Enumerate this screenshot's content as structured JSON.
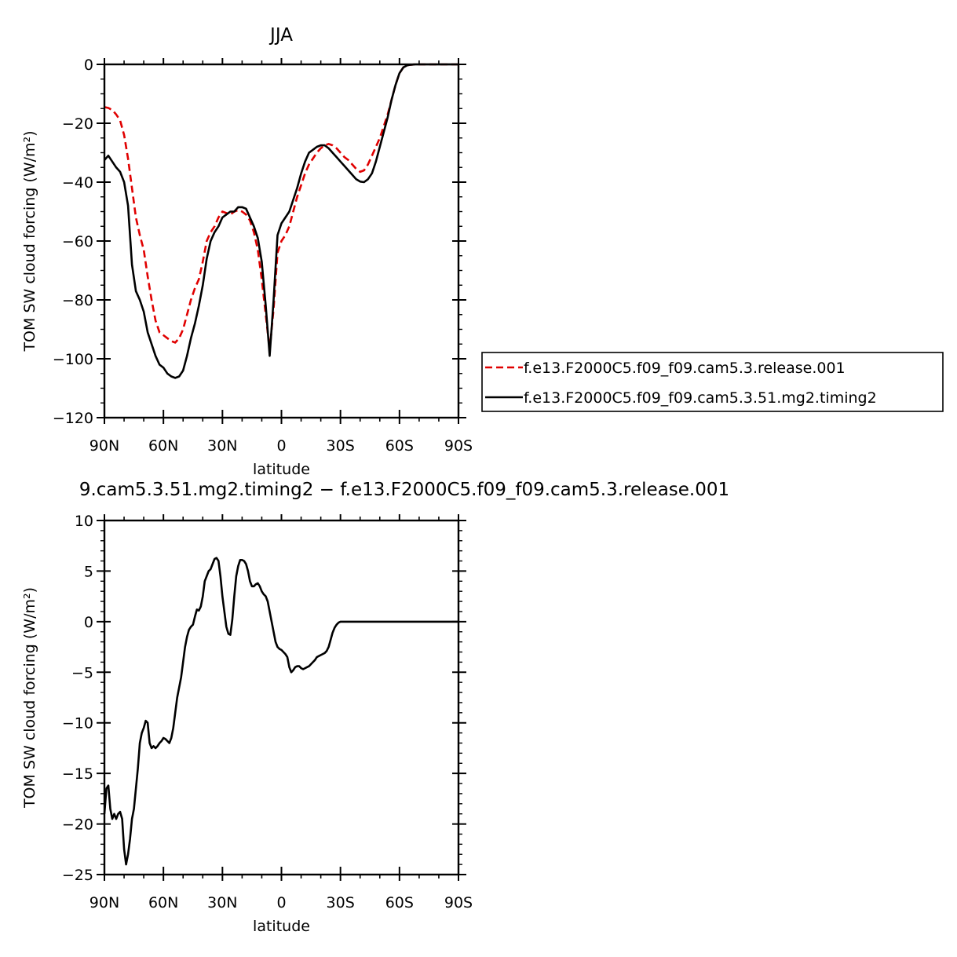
{
  "colors": {
    "axis": "#000000",
    "release": "#e00000",
    "timing2": "#000000",
    "background": "#ffffff"
  },
  "chart_data": [
    {
      "type": "line",
      "title": "JJA",
      "xlabel": "latitude",
      "ylabel": "TOM SW cloud forcing (W/m²)",
      "xlim": [
        90,
        -90
      ],
      "ylim": [
        -120,
        0
      ],
      "xticks": [
        90,
        60,
        30,
        0,
        -30,
        -60,
        -90
      ],
      "xtick_labels": [
        "90N",
        "60N",
        "30N",
        "0",
        "30S",
        "60S",
        "90S"
      ],
      "yticks": [
        0,
        -20,
        -40,
        -60,
        -80,
        -100,
        -120
      ],
      "ytick_labels": [
        "0",
        "−20",
        "−40",
        "−60",
        "−80",
        "−100",
        "−120"
      ],
      "grid": false,
      "legend_position": "right",
      "series": [
        {
          "name": "f.e13.F2000C5.f09_f09.cam5.3.release.001",
          "style": "dashed",
          "color": "#e00000",
          "x": [
            90,
            88,
            86,
            84,
            82,
            80,
            78,
            76,
            74,
            72,
            70,
            68,
            66,
            64,
            62,
            60,
            58,
            56,
            54,
            52,
            50,
            48,
            46,
            44,
            42,
            40,
            38,
            36,
            34,
            32,
            30,
            28,
            26,
            24,
            22,
            20,
            18,
            16,
            14,
            12,
            10,
            8,
            6,
            4,
            2,
            0,
            -2,
            -4,
            -6,
            -8,
            -10,
            -12,
            -14,
            -16,
            -18,
            -20,
            -22,
            -24,
            -26,
            -28,
            -30,
            -32,
            -34,
            -36,
            -38,
            -40,
            -42,
            -44,
            -46,
            -48,
            -50,
            -52,
            -54,
            -56,
            -58,
            -60,
            -62,
            -64,
            -66,
            -68,
            -70,
            -75,
            -80,
            -85,
            -90
          ],
          "y": [
            -14.5,
            -14.8,
            -15.5,
            -17,
            -19,
            -24,
            -32,
            -42,
            -52,
            -58,
            -63,
            -72,
            -80,
            -87,
            -91,
            -92,
            -93,
            -94,
            -94.5,
            -93,
            -90,
            -85,
            -80,
            -76,
            -73,
            -67,
            -60,
            -57,
            -55,
            -52,
            -50,
            -50.5,
            -51,
            -50,
            -49.5,
            -50,
            -51,
            -53,
            -57,
            -63,
            -73,
            -85,
            -97,
            -83,
            -64,
            -60,
            -58,
            -55,
            -50,
            -45,
            -41,
            -37,
            -34,
            -32,
            -30,
            -28.5,
            -27.5,
            -27,
            -27.5,
            -28.5,
            -30,
            -31.5,
            -32.5,
            -34,
            -35.5,
            -36.5,
            -36,
            -34,
            -31,
            -28,
            -25,
            -21,
            -17,
            -12,
            -7,
            -3,
            -1,
            -0.3,
            -0.1,
            0,
            0,
            0,
            0,
            0,
            0
          ]
        },
        {
          "name": "f.e13.F2000C5.f09_f09.cam5.3.51.mg2.timing2",
          "style": "solid",
          "color": "#000000",
          "x": [
            90,
            88,
            86,
            84,
            82,
            80,
            78,
            76,
            74,
            72,
            70,
            68,
            66,
            64,
            62,
            60,
            58,
            56,
            54,
            52,
            50,
            48,
            46,
            44,
            42,
            40,
            38,
            36,
            34,
            32,
            30,
            28,
            26,
            24,
            22,
            20,
            18,
            16,
            14,
            12,
            10,
            8,
            6,
            4,
            2,
            0,
            -2,
            -4,
            -6,
            -8,
            -10,
            -12,
            -14,
            -16,
            -18,
            -20,
            -22,
            -24,
            -26,
            -28,
            -30,
            -32,
            -34,
            -36,
            -38,
            -40,
            -42,
            -44,
            -46,
            -48,
            -50,
            -52,
            -54,
            -56,
            -58,
            -60,
            -62,
            -64,
            -66,
            -68,
            -70,
            -75,
            -80,
            -85,
            -90
          ],
          "y": [
            -32.5,
            -31,
            -33,
            -35,
            -36.5,
            -40,
            -48,
            -68,
            -77,
            -80,
            -84,
            -91,
            -95,
            -99,
            -102,
            -103,
            -105,
            -106,
            -106.5,
            -106,
            -104,
            -99,
            -93,
            -88,
            -82,
            -75,
            -66,
            -60,
            -57,
            -55,
            -52,
            -51,
            -50,
            -50,
            -48.5,
            -48.5,
            -49,
            -52,
            -55,
            -59,
            -67,
            -82,
            -99,
            -80,
            -58,
            -54,
            -52,
            -50,
            -46,
            -42,
            -37,
            -33,
            -30,
            -29,
            -28,
            -27.5,
            -27.5,
            -28.5,
            -30,
            -31.5,
            -33,
            -34.5,
            -36,
            -37.5,
            -39,
            -39.8,
            -40,
            -39,
            -37,
            -33,
            -28,
            -23,
            -18,
            -12,
            -7,
            -3,
            -1,
            -0.3,
            -0.1,
            0,
            0,
            0,
            0,
            0,
            0
          ]
        }
      ]
    },
    {
      "type": "line",
      "title": "9.cam5.3.51.mg2.timing2 − f.e13.F2000C5.f09_f09.cam5.3.release.001",
      "xlabel": "latitude",
      "ylabel": "TOM SW cloud forcing (W/m²)",
      "xlim": [
        90,
        -90
      ],
      "ylim": [
        -25,
        10
      ],
      "xticks": [
        90,
        60,
        30,
        0,
        -30,
        -60,
        -90
      ],
      "xtick_labels": [
        "90N",
        "60N",
        "30N",
        "0",
        "30S",
        "60S",
        "90S"
      ],
      "yticks": [
        10,
        5,
        0,
        -5,
        -10,
        -15,
        -20,
        -25
      ],
      "ytick_labels": [
        "10",
        "5",
        "0",
        "−5",
        "−10",
        "−15",
        "−20",
        "−25"
      ],
      "grid": false,
      "series": [
        {
          "style": "solid",
          "color": "#000000",
          "x": [
            90,
            89,
            88,
            87,
            86,
            85,
            84,
            83,
            82,
            81,
            80,
            79,
            78,
            77,
            76,
            75,
            74,
            73,
            72,
            71,
            70,
            69,
            68,
            67,
            66,
            65,
            64,
            63,
            62,
            61,
            60,
            59,
            58,
            57,
            56,
            55,
            54,
            53,
            52,
            51,
            50,
            49,
            48,
            47,
            46,
            45,
            44,
            43,
            42,
            41,
            40,
            39,
            38,
            37,
            36,
            35,
            34,
            33,
            32,
            31,
            30,
            29,
            28,
            27,
            26,
            25,
            24,
            23,
            22,
            21,
            20,
            19,
            18,
            17,
            16,
            15,
            14,
            13,
            12,
            11,
            10,
            9,
            8,
            7,
            6,
            5,
            4,
            3,
            2,
            1,
            0,
            -1,
            -2,
            -3,
            -4,
            -5,
            -6,
            -7,
            -8,
            -9,
            -10,
            -11,
            -12,
            -13,
            -14,
            -15,
            -16,
            -17,
            -18,
            -19,
            -20,
            -21,
            -22,
            -23,
            -24,
            -25,
            -26,
            -27,
            -28,
            -29,
            -30,
            -32,
            -34,
            -36,
            -38,
            -40,
            -42,
            -44,
            -46,
            -48,
            -50,
            -52,
            -54,
            -56,
            -58,
            -60,
            -62,
            -64,
            -66,
            -68,
            -70,
            -75,
            -80,
            -85,
            -90
          ],
          "y": [
            -19,
            -16.5,
            -16.2,
            -18.5,
            -19.5,
            -19,
            -19.5,
            -19,
            -18.8,
            -19.5,
            -22.5,
            -24,
            -23,
            -21.5,
            -19.5,
            -18.5,
            -16.5,
            -14.5,
            -12,
            -11,
            -10.5,
            -9.8,
            -10,
            -12,
            -12.5,
            -12.3,
            -12.5,
            -12.3,
            -12,
            -11.8,
            -11.5,
            -11.6,
            -11.8,
            -12,
            -11.5,
            -10.5,
            -9,
            -7.5,
            -6.5,
            -5.5,
            -4,
            -2.5,
            -1.5,
            -0.8,
            -0.5,
            -0.3,
            0.5,
            1.2,
            1.1,
            1.5,
            2.5,
            4,
            4.5,
            5,
            5.2,
            5.7,
            6.2,
            6.3,
            6,
            4.5,
            2.5,
            1,
            -0.5,
            -1.2,
            -1.3,
            0.2,
            2.5,
            4.5,
            5.5,
            6.1,
            6.1,
            6,
            5.7,
            5,
            4,
            3.5,
            3.5,
            3.7,
            3.8,
            3.5,
            3,
            2.7,
            2.5,
            2,
            1,
            0,
            -1,
            -2,
            -2.5,
            -2.7,
            -2.8,
            -3,
            -3.2,
            -3.5,
            -4.5,
            -5,
            -4.8,
            -4.5,
            -4.4,
            -4.4,
            -4.6,
            -4.7,
            -4.6,
            -4.5,
            -4.4,
            -4.2,
            -4,
            -3.8,
            -3.5,
            -3.4,
            -3.3,
            -3.2,
            -3.1,
            -2.9,
            -2.5,
            -1.8,
            -1.1,
            -0.6,
            -0.3,
            -0.1,
            0,
            0,
            0,
            0,
            0,
            0,
            0,
            0,
            0,
            0,
            0,
            0,
            0,
            0,
            0,
            0,
            0,
            0,
            0,
            0,
            0,
            0,
            0,
            0,
            0
          ]
        }
      ]
    }
  ]
}
